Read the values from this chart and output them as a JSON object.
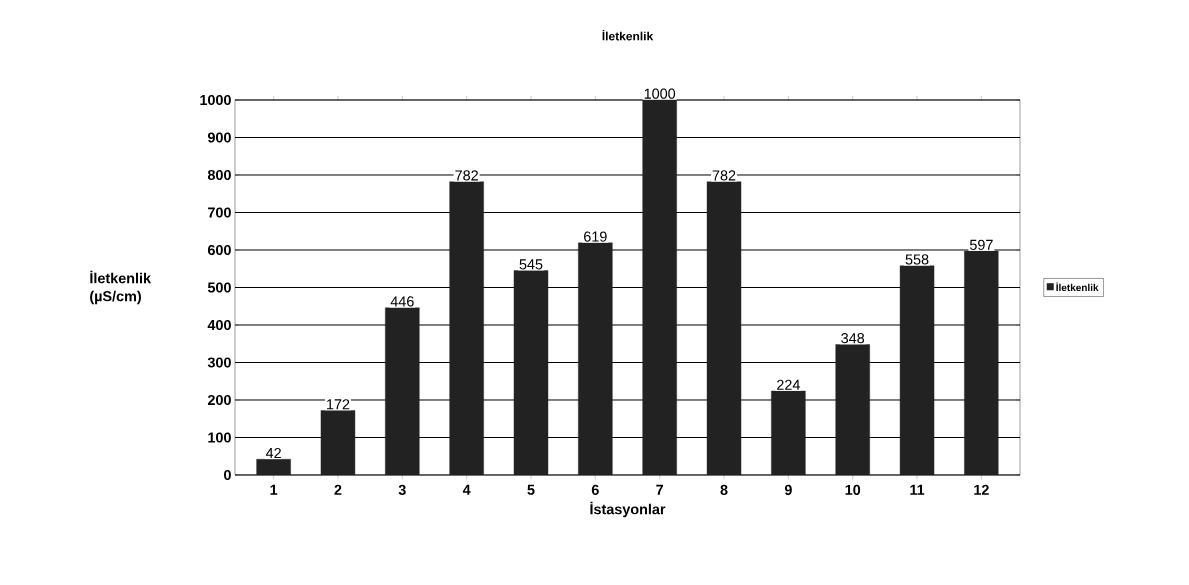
{
  "chart_data": {
    "type": "bar",
    "title": "İletkenlik",
    "xlabel": "İstasyonlar",
    "ylabel": "İletkenlik (µS/cm)",
    "categories": [
      "1",
      "2",
      "3",
      "4",
      "5",
      "6",
      "7",
      "8",
      "9",
      "10",
      "11",
      "12"
    ],
    "series": [
      {
        "name": "İletkenlik",
        "color": "#222222",
        "values": [
          42,
          172,
          446,
          782,
          545,
          619,
          1000,
          782,
          224,
          348,
          558,
          597
        ]
      }
    ],
    "ylim": [
      0,
      1000
    ],
    "yticks": [
      0,
      100,
      200,
      300,
      400,
      500,
      600,
      700,
      800,
      900,
      1000
    ],
    "grid": "y",
    "legend": "right",
    "data_labels": true
  }
}
